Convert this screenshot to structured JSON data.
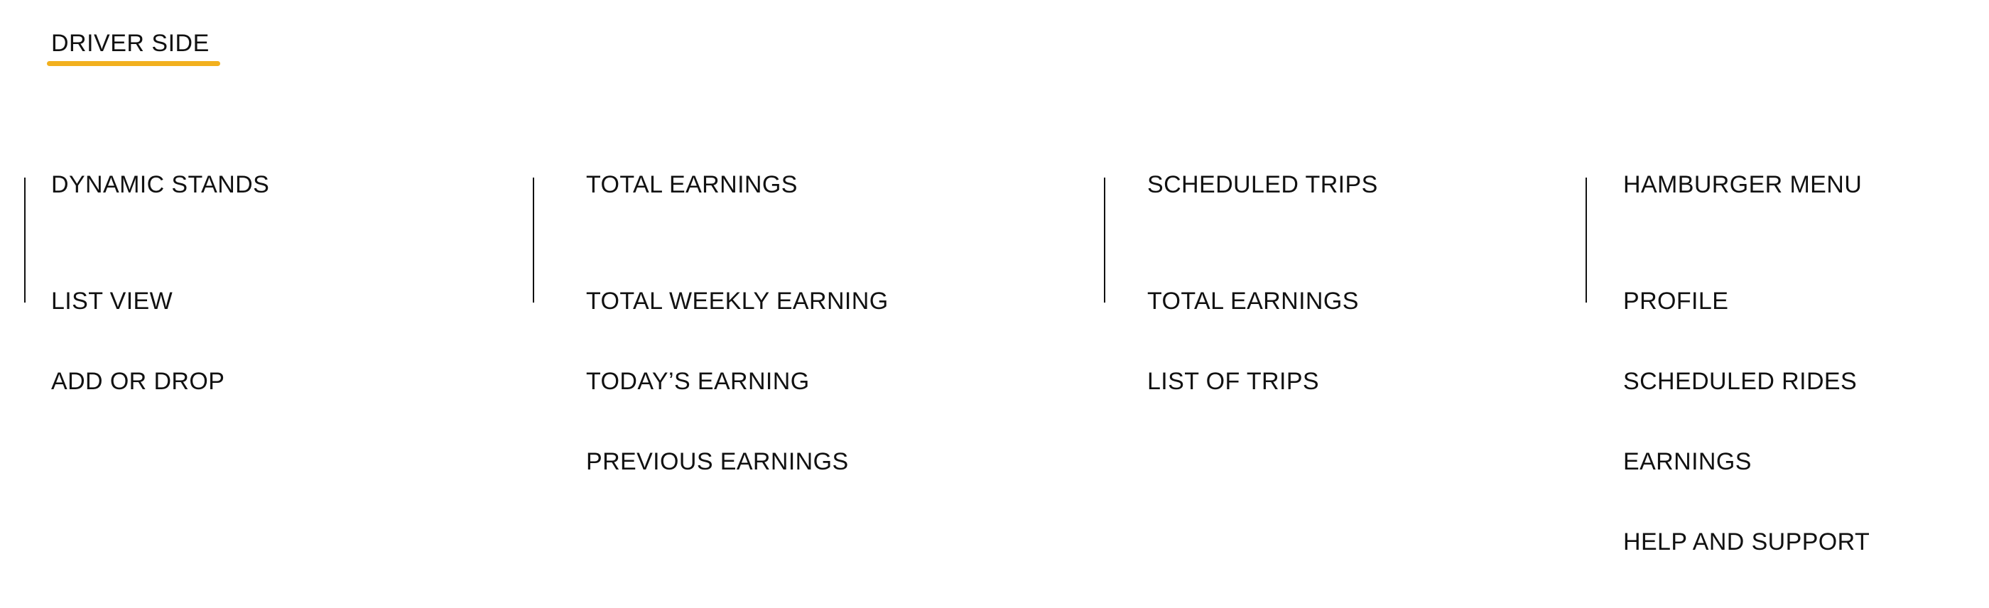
{
  "title": "DRIVER SIDE",
  "colors": {
    "accent": "#F2B01E",
    "text": "#111111",
    "divider": "#111111"
  },
  "columns": [
    {
      "heading": "DYNAMIC STANDS",
      "items": [
        "LIST VIEW",
        "ADD OR DROP"
      ]
    },
    {
      "heading": "TOTAL EARNINGS",
      "items": [
        "TOTAL WEEKLY EARNING",
        "TODAY’S EARNING",
        "PREVIOUS EARNINGS"
      ]
    },
    {
      "heading": "SCHEDULED TRIPS",
      "items": [
        "TOTAL EARNINGS",
        "LIST OF TRIPS"
      ]
    },
    {
      "heading": "HAMBURGER MENU",
      "items": [
        "PROFILE",
        "SCHEDULED RIDES",
        "EARNINGS",
        "HELP AND SUPPORT"
      ]
    }
  ]
}
